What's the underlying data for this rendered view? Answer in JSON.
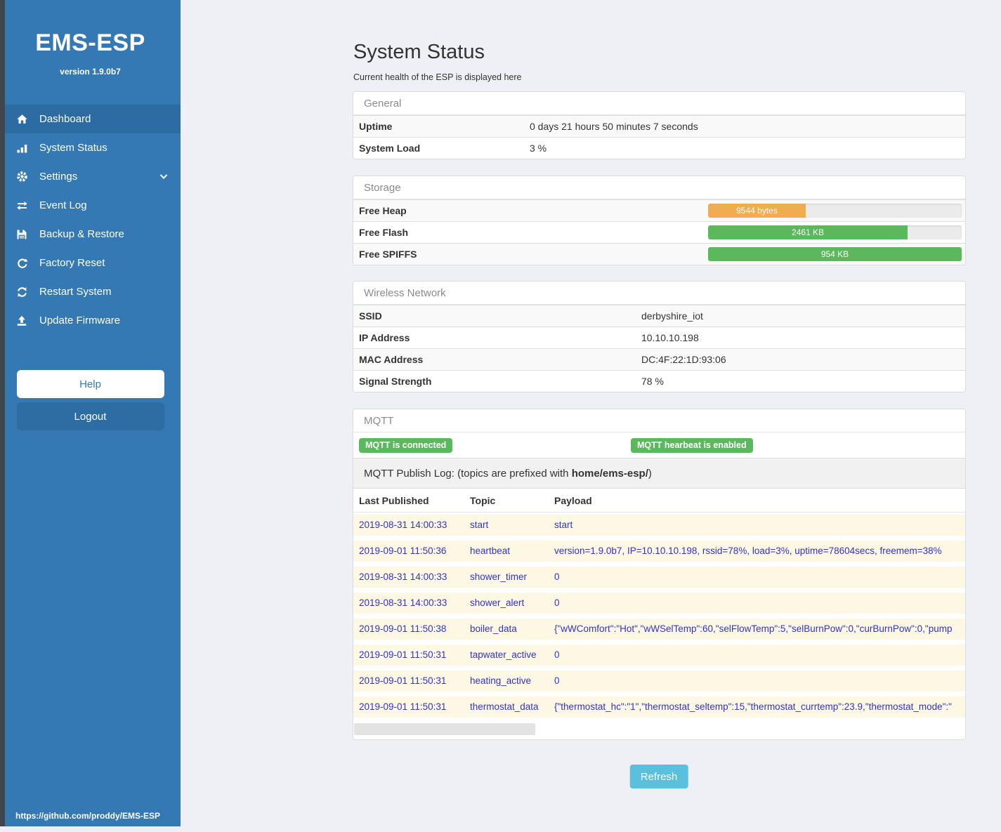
{
  "app": {
    "brand": "EMS-ESP",
    "version": "version 1.9.0b7",
    "footer_url": "https://github.com/proddy/EMS-ESP"
  },
  "sidebar": {
    "nav": [
      {
        "label": "Dashboard",
        "icon": "home-icon",
        "active": true
      },
      {
        "label": "System Status",
        "icon": "signal-icon",
        "active": false
      },
      {
        "label": "Settings",
        "icon": "gear-icon",
        "active": false,
        "chevron": "chevron-down-icon"
      },
      {
        "label": "Event Log",
        "icon": "swap-arrows-icon",
        "active": false
      },
      {
        "label": "Backup & Restore",
        "icon": "floppy-icon",
        "active": false
      },
      {
        "label": "Factory Reset",
        "icon": "rotate-right-icon",
        "active": false
      },
      {
        "label": "Restart System",
        "icon": "sync-icon",
        "active": false
      },
      {
        "label": "Update Firmware",
        "icon": "upload-icon",
        "active": false
      }
    ],
    "help_label": "Help",
    "logout_label": "Logout"
  },
  "header": {
    "title": "System Status",
    "subtitle": "Current health of the ESP is displayed here"
  },
  "general": {
    "title": "General",
    "rows": [
      {
        "label": "Uptime",
        "value": "0 days 21 hours 50 minutes 7 seconds"
      },
      {
        "label": "System Load",
        "value": "3 %"
      }
    ]
  },
  "storage": {
    "title": "Storage",
    "rows": [
      {
        "label": "Free Heap",
        "value": "9544 bytes",
        "percent": 38.5,
        "color": "#f0ad4e"
      },
      {
        "label": "Free Flash",
        "value": "2461 KB",
        "percent": 78.7,
        "color": "#5cb85c"
      },
      {
        "label": "Free SPIFFS",
        "value": "954 KB",
        "percent": 100,
        "color": "#5cb85c"
      }
    ]
  },
  "wireless": {
    "title": "Wireless Network",
    "rows": [
      {
        "label": "SSID",
        "value": "derbyshire_iot"
      },
      {
        "label": "IP Address",
        "value": "10.10.10.198"
      },
      {
        "label": "MAC Address",
        "value": "DC:4F:22:1D:93:06"
      },
      {
        "label": "Signal Strength",
        "value": "78 %"
      }
    ]
  },
  "mqtt": {
    "title": "MQTT",
    "badges": [
      {
        "label": "MQTT is connected"
      },
      {
        "label": "MQTT hearbeat is enabled"
      }
    ],
    "publish_log": {
      "prefix": "MQTT Publish Log: (topics are prefixed with ",
      "bold": "home/ems-esp/",
      "suffix": ")"
    },
    "table": {
      "headers": {
        "time": "Last Published",
        "topic": "Topic",
        "payload": "Payload"
      },
      "rows": [
        {
          "time": "2019-08-31 14:00:33",
          "topic": "start",
          "payload": "start"
        },
        {
          "time": "2019-09-01 11:50:36",
          "topic": "heartbeat",
          "payload": "version=1.9.0b7, IP=10.10.10.198, rssid=78%, load=3%, uptime=78604secs, freemem=38%"
        },
        {
          "time": "2019-08-31 14:00:33",
          "topic": "shower_timer",
          "payload": "0"
        },
        {
          "time": "2019-08-31 14:00:33",
          "topic": "shower_alert",
          "payload": "0"
        },
        {
          "time": "2019-09-01 11:50:38",
          "topic": "boiler_data",
          "payload": "{\"wWComfort\":\"Hot\",\"wWSelTemp\":60,\"selFlowTemp\":5,\"selBurnPow\":0,\"curBurnPow\":0,\"pump"
        },
        {
          "time": "2019-09-01 11:50:31",
          "topic": "tapwater_active",
          "payload": "0"
        },
        {
          "time": "2019-09-01 11:50:31",
          "topic": "heating_active",
          "payload": "0"
        },
        {
          "time": "2019-09-01 11:50:31",
          "topic": "thermostat_data",
          "payload": "{\"thermostat_hc\":\"1\",\"thermostat_seltemp\":15,\"thermostat_currtemp\":23.9,\"thermostat_mode\":\""
        }
      ]
    }
  },
  "refresh_label": "Refresh",
  "colors": {
    "sidebar": "#3478b4",
    "sidebar_active": "#2d6ca2",
    "accent_green": "#5cb85c",
    "accent_orange": "#f0ad4e",
    "refresh_blue": "#5bc0de",
    "log_row_bg": "#fcf8e3",
    "log_text": "#3232d1"
  }
}
